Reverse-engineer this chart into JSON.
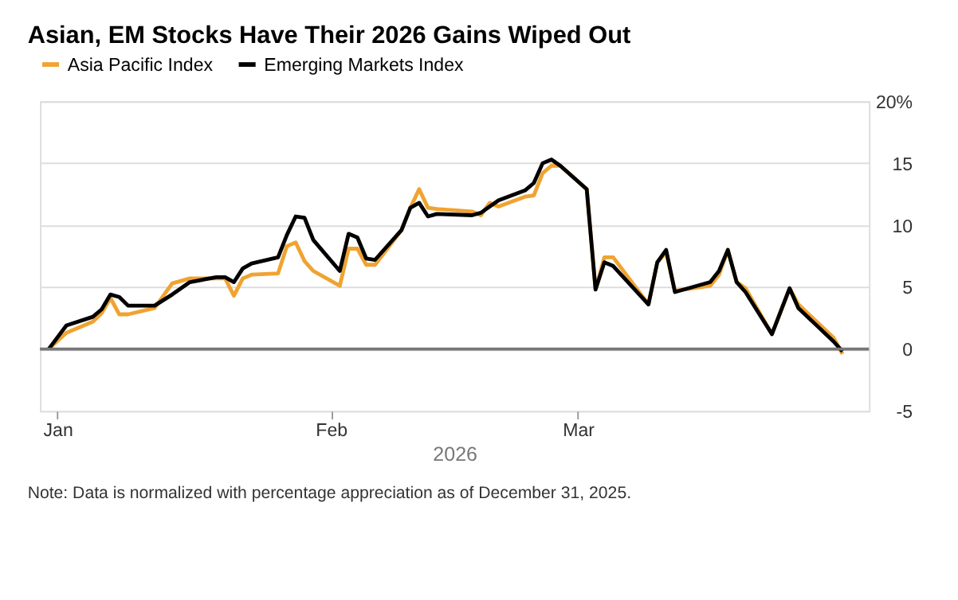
{
  "chart_data": {
    "type": "line",
    "title": "Asian, EM Stocks Have Their 2026 Gains Wiped Out",
    "xlabel": "2026",
    "x": [
      "2025-12-31",
      "2026-01-02",
      "2026-01-05",
      "2026-01-06",
      "2026-01-07",
      "2026-01-08",
      "2026-01-09",
      "2026-01-12",
      "2026-01-14",
      "2026-01-16",
      "2026-01-19",
      "2026-01-20",
      "2026-01-21",
      "2026-01-22",
      "2026-01-23",
      "2026-01-26",
      "2026-01-27",
      "2026-01-28",
      "2026-01-29",
      "2026-01-30",
      "2026-02-02",
      "2026-02-03",
      "2026-02-04",
      "2026-02-05",
      "2026-02-06",
      "2026-02-09",
      "2026-02-10",
      "2026-02-11",
      "2026-02-12",
      "2026-02-13",
      "2026-02-17",
      "2026-02-18",
      "2026-02-19",
      "2026-02-20",
      "2026-02-23",
      "2026-02-24",
      "2026-02-25",
      "2026-02-26",
      "2026-02-27",
      "2026-03-02",
      "2026-03-03",
      "2026-03-04",
      "2026-03-05",
      "2026-03-09",
      "2026-03-10",
      "2026-03-11",
      "2026-03-12",
      "2026-03-16",
      "2026-03-17",
      "2026-03-18",
      "2026-03-19",
      "2026-03-20",
      "2026-03-23",
      "2026-03-25",
      "2026-03-26",
      "2026-03-30",
      "2026-03-31"
    ],
    "series": [
      {
        "name": "Asia Pacific Index",
        "color": "#f0a331",
        "values": [
          0,
          1.3,
          2.2,
          2.9,
          4.1,
          2.8,
          2.8,
          3.3,
          5.3,
          5.7,
          5.7,
          5.7,
          4.3,
          5.7,
          6.0,
          6.1,
          8.3,
          8.6,
          7.1,
          6.3,
          5.1,
          8.1,
          8.1,
          6.8,
          6.8,
          9.6,
          11.4,
          12.9,
          11.4,
          11.3,
          11.1,
          10.8,
          11.8,
          11.5,
          12.3,
          12.4,
          14.2,
          14.8,
          14.8,
          12.9,
          4.8,
          7.4,
          7.4,
          3.6,
          7.0,
          7.8,
          4.7,
          5.1,
          6.0,
          8.0,
          5.4,
          4.9,
          1.2,
          4.9,
          3.6,
          0.9,
          -0.4
        ]
      },
      {
        "name": "Emerging Markets Index",
        "color": "#000000",
        "values": [
          0,
          1.9,
          2.6,
          3.2,
          4.4,
          4.2,
          3.5,
          3.5,
          4.4,
          5.4,
          5.8,
          5.8,
          5.4,
          6.5,
          6.9,
          7.4,
          9.2,
          10.7,
          10.6,
          8.8,
          6.3,
          9.3,
          9.0,
          7.3,
          7.2,
          9.6,
          11.4,
          11.8,
          10.7,
          10.9,
          10.8,
          11.0,
          11.5,
          12.0,
          12.8,
          13.4,
          15.0,
          15.3,
          14.8,
          12.9,
          4.8,
          7.0,
          6.7,
          3.6,
          7.0,
          8.0,
          4.6,
          5.4,
          6.3,
          8.0,
          5.4,
          4.6,
          1.2,
          4.9,
          3.3,
          0.6,
          -0.2
        ]
      }
    ],
    "xlim": [
      "2025-12-30",
      "2026-04-03"
    ],
    "xticks": [
      {
        "value": "2026-01-01",
        "label": "Jan"
      },
      {
        "value": "2026-02-01",
        "label": "Feb"
      },
      {
        "value": "2026-03-01",
        "label": "Mar"
      }
    ],
    "ylim": [
      -5,
      20
    ],
    "yticks": [
      -5,
      0,
      5,
      10,
      15,
      {
        "value": 20,
        "label": "20%"
      }
    ],
    "grid": "y",
    "ref_lines": [
      {
        "axis": "y",
        "value": 0,
        "color": "#777777"
      }
    ],
    "legend": "top left",
    "marker": "none",
    "line_style": "solid",
    "annotations": [
      "Note: Data is normalized with percentage appreciation as of December 31, 2025."
    ]
  }
}
